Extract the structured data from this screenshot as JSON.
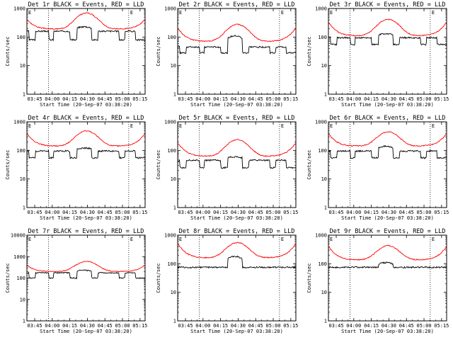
{
  "figure": {
    "xlabel": "Start Time (20-Sep-07 03:38:20)",
    "ylabel": "Counts/sec",
    "x_tick_labels": [
      "03:45",
      "04:00",
      "04:15",
      "04:30",
      "04:45",
      "05:00",
      "05:15"
    ],
    "x_tick_minutes": [
      6.67,
      21.67,
      36.67,
      51.67,
      66.67,
      81.67,
      96.67
    ],
    "x_range_minutes": [
      0,
      101
    ],
    "dotted_vlines_minutes": [
      18.5,
      87.0
    ],
    "corner_markers": [
      "E",
      "E"
    ],
    "series_colors": {
      "events": "#000000",
      "lld": "#ff0000"
    },
    "legend": {
      "events": "BLACK = Events",
      "lld": "RED = LLD"
    }
  },
  "chart_data": [
    {
      "type": "line",
      "title": "Det 1r BLACK = Events, RED = LLD",
      "ylim": [
        1,
        1000
      ],
      "y_tick_labels": [
        "1",
        "10",
        "100",
        "1000"
      ],
      "events": {
        "base": 160,
        "bump": 230,
        "gap_value": 80
      },
      "lld": {
        "base": 190,
        "peak": 700,
        "edge_rise": 2.2
      }
    },
    {
      "type": "line",
      "title": "Det 2r BLACK = Events, RED = LLD",
      "ylim": [
        1,
        1000
      ],
      "y_tick_labels": [
        "1",
        "10",
        "100",
        "1000"
      ],
      "events": {
        "base": 45,
        "bump": 110,
        "gap_value": 28
      },
      "lld": {
        "base": 70,
        "peak": 280,
        "edge_rise": 3.0
      }
    },
    {
      "type": "line",
      "title": "Det 3r BLACK = Events, RED = LLD",
      "ylim": [
        1,
        1000
      ],
      "y_tick_labels": [
        "1",
        "10",
        "100",
        "1000"
      ],
      "events": {
        "base": 95,
        "bump": 130,
        "gap_value": 55
      },
      "lld": {
        "base": 110,
        "peak": 420,
        "edge_rise": 3.0
      }
    },
    {
      "type": "line",
      "title": "Det 4r BLACK = Events, RED = LLD",
      "ylim": [
        1,
        1000
      ],
      "y_tick_labels": [
        "1",
        "10",
        "100",
        "1000"
      ],
      "events": {
        "base": 95,
        "bump": 120,
        "gap_value": 55
      },
      "lld": {
        "base": 140,
        "peak": 480,
        "edge_rise": 2.8
      }
    },
    {
      "type": "line",
      "title": "Det 5r BLACK = Events, RED = LLD",
      "ylim": [
        1,
        1000
      ],
      "y_tick_labels": [
        "1",
        "10",
        "100",
        "1000"
      ],
      "events": {
        "base": 45,
        "bump": 60,
        "gap_value": 25
      },
      "lld": {
        "base": 62,
        "peak": 240,
        "edge_rise": 3.0
      }
    },
    {
      "type": "line",
      "title": "Det 6r BLACK = Events, RED = LLD",
      "ylim": [
        1,
        1000
      ],
      "y_tick_labels": [
        "1",
        "10",
        "100",
        "1000"
      ],
      "events": {
        "base": 95,
        "bump": 140,
        "gap_value": 55
      },
      "lld": {
        "base": 140,
        "peak": 450,
        "edge_rise": 2.8
      }
    },
    {
      "type": "line",
      "title": "Det 7r BLACK = Events, RED = LLD",
      "ylim": [
        1,
        10000
      ],
      "y_tick_labels": [
        "1",
        "10",
        "100",
        "1000",
        "10000"
      ],
      "events": {
        "base": 175,
        "bump": 230,
        "gap_value": 100
      },
      "lld": {
        "base": 200,
        "peak": 600,
        "edge_rise": 2.0
      }
    },
    {
      "type": "line",
      "title": "Det 8r BLACK = Events, RED = LLD",
      "ylim": [
        1,
        1000
      ],
      "y_tick_labels": [
        "1",
        "10",
        "100",
        "1000"
      ],
      "events": {
        "base": 75,
        "bump": 180,
        "gap_value": 75
      },
      "lld": {
        "base": 160,
        "peak": 550,
        "edge_rise": 3.2
      }
    },
    {
      "type": "line",
      "title": "Det 9r BLACK = Events, RED = LLD",
      "ylim": [
        1,
        1000
      ],
      "y_tick_labels": [
        "1",
        "10",
        "100",
        "1000"
      ],
      "events": {
        "base": 75,
        "bump": 110,
        "gap_value": 75
      },
      "lld": {
        "base": 135,
        "peak": 430,
        "edge_rise": 3.0
      }
    }
  ]
}
